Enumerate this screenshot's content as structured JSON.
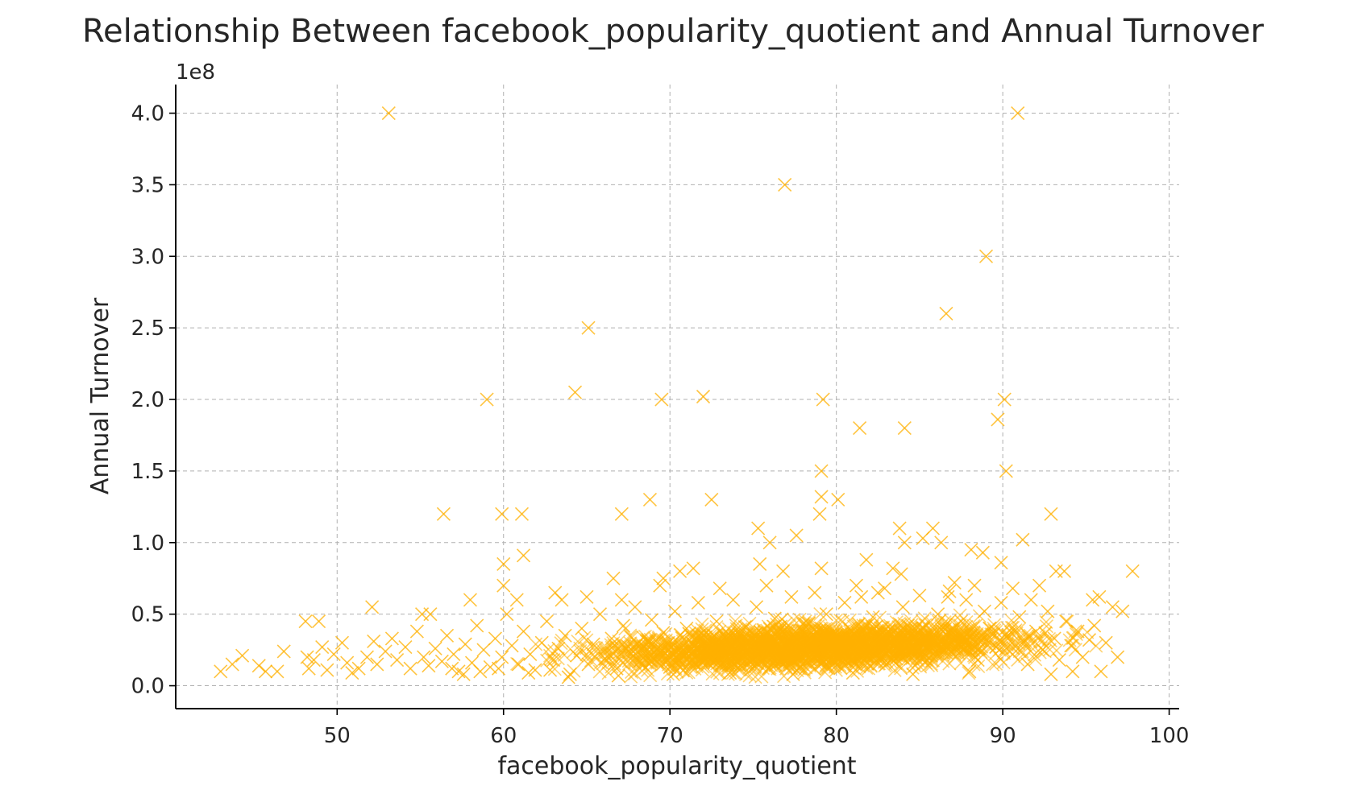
{
  "chart_data": {
    "type": "scatter",
    "title": "Relationship Between facebook_popularity_quotient and Annual Turnover",
    "xlabel": "facebook_popularity_quotient",
    "ylabel": "Annual Turnover",
    "y_scale_label": "1e8",
    "xlim": [
      40.3,
      100.6
    ],
    "ylim": [
      -0.16,
      4.2
    ],
    "x_ticks": [
      50,
      60,
      70,
      80,
      90,
      100
    ],
    "x_tick_labels": [
      "50",
      "60",
      "70",
      "80",
      "90",
      "100"
    ],
    "y_ticks": [
      0.0,
      0.5,
      1.0,
      1.5,
      2.0,
      2.5,
      3.0,
      3.5,
      4.0
    ],
    "y_tick_labels": [
      "0.0",
      "0.5",
      "1.0",
      "1.5",
      "2.0",
      "2.5",
      "3.0",
      "3.5",
      "4.0"
    ],
    "grid": true,
    "marker": "x",
    "color": "#FFB000",
    "y_units_multiplier": "1e8",
    "series": [
      {
        "points": [
          [
            53.1,
            4.0
          ],
          [
            90.9,
            4.0
          ],
          [
            76.9,
            3.5
          ],
          [
            89.0,
            3.0
          ],
          [
            86.6,
            2.6
          ],
          [
            65.1,
            2.5
          ],
          [
            64.3,
            2.05
          ],
          [
            59.0,
            2.0
          ],
          [
            69.5,
            2.0
          ],
          [
            72.0,
            2.02
          ],
          [
            79.2,
            2.0
          ],
          [
            90.1,
            2.0
          ],
          [
            89.7,
            1.86
          ],
          [
            81.4,
            1.8
          ],
          [
            84.1,
            1.8
          ],
          [
            79.1,
            1.5
          ],
          [
            90.2,
            1.5
          ],
          [
            68.8,
            1.3
          ],
          [
            72.5,
            1.3
          ],
          [
            79.1,
            1.32
          ],
          [
            80.1,
            1.3
          ],
          [
            56.4,
            1.2
          ],
          [
            59.9,
            1.2
          ],
          [
            61.1,
            1.2
          ],
          [
            67.1,
            1.2
          ],
          [
            79.0,
            1.2
          ],
          [
            92.9,
            1.2
          ],
          [
            75.3,
            1.1
          ],
          [
            83.8,
            1.1
          ],
          [
            85.8,
            1.1
          ],
          [
            77.6,
            1.05
          ],
          [
            85.2,
            1.03
          ],
          [
            91.2,
            1.02
          ],
          [
            76.0,
            1.0
          ],
          [
            84.1,
            1.0
          ],
          [
            86.3,
            1.0
          ],
          [
            61.2,
            0.91
          ],
          [
            88.1,
            0.95
          ],
          [
            88.8,
            0.93
          ],
          [
            89.9,
            0.86
          ],
          [
            81.8,
            0.88
          ],
          [
            60.0,
            0.85
          ],
          [
            75.4,
            0.85
          ],
          [
            79.1,
            0.82
          ],
          [
            83.4,
            0.82
          ],
          [
            70.6,
            0.8
          ],
          [
            71.4,
            0.82
          ],
          [
            76.8,
            0.8
          ],
          [
            93.2,
            0.8
          ],
          [
            93.7,
            0.8
          ],
          [
            97.8,
            0.8
          ],
          [
            66.6,
            0.75
          ],
          [
            69.6,
            0.75
          ],
          [
            83.9,
            0.78
          ],
          [
            87.1,
            0.72
          ],
          [
            60.0,
            0.7
          ],
          [
            69.4,
            0.7
          ],
          [
            75.8,
            0.7
          ],
          [
            81.2,
            0.7
          ],
          [
            88.3,
            0.7
          ],
          [
            90.6,
            0.68
          ],
          [
            92.2,
            0.7
          ],
          [
            63.1,
            0.65
          ],
          [
            63.5,
            0.6
          ],
          [
            65.0,
            0.62
          ],
          [
            67.1,
            0.6
          ],
          [
            73.0,
            0.68
          ],
          [
            82.5,
            0.65
          ],
          [
            58.0,
            0.6
          ],
          [
            60.8,
            0.6
          ],
          [
            86.7,
            0.62
          ],
          [
            95.4,
            0.6
          ],
          [
            95.8,
            0.62
          ],
          [
            52.1,
            0.55
          ],
          [
            96.6,
            0.55
          ],
          [
            55.1,
            0.5
          ],
          [
            55.6,
            0.5
          ],
          [
            97.2,
            0.52
          ],
          [
            48.1,
            0.45
          ],
          [
            48.9,
            0.45
          ],
          [
            43.0,
            0.1
          ],
          [
            43.7,
            0.15
          ],
          [
            44.3,
            0.21
          ],
          [
            45.3,
            0.14
          ],
          [
            45.7,
            0.1
          ],
          [
            46.4,
            0.1
          ],
          [
            46.8,
            0.24
          ],
          [
            48.2,
            0.2
          ],
          [
            48.3,
            0.12
          ],
          [
            48.6,
            0.18
          ],
          [
            49.1,
            0.27
          ],
          [
            49.4,
            0.11
          ],
          [
            49.8,
            0.22
          ],
          [
            50.3,
            0.3
          ],
          [
            50.6,
            0.16
          ],
          [
            50.9,
            0.09
          ],
          [
            51.3,
            0.12
          ],
          [
            51.8,
            0.2
          ],
          [
            52.2,
            0.31
          ],
          [
            52.4,
            0.15
          ],
          [
            52.9,
            0.24
          ],
          [
            53.3,
            0.33
          ],
          [
            53.6,
            0.18
          ],
          [
            54.1,
            0.27
          ],
          [
            54.4,
            0.12
          ],
          [
            54.8,
            0.38
          ],
          [
            55.2,
            0.2
          ],
          [
            55.5,
            0.14
          ],
          [
            55.9,
            0.26
          ],
          [
            56.3,
            0.17
          ],
          [
            56.6,
            0.35
          ],
          [
            57.0,
            0.22
          ],
          [
            57.3,
            0.1
          ],
          [
            57.7,
            0.29
          ],
          [
            58.1,
            0.16
          ],
          [
            58.4,
            0.42
          ],
          [
            58.8,
            0.25
          ],
          [
            59.2,
            0.13
          ],
          [
            59.5,
            0.33
          ],
          [
            59.9,
            0.2
          ],
          [
            60.2,
            0.5
          ],
          [
            60.5,
            0.28
          ],
          [
            60.9,
            0.15
          ],
          [
            61.2,
            0.38
          ],
          [
            61.6,
            0.22
          ],
          [
            61.9,
            0.11
          ],
          [
            62.3,
            0.3
          ],
          [
            62.6,
            0.45
          ],
          [
            63.0,
            0.18
          ],
          [
            63.3,
            0.26
          ],
          [
            63.7,
            0.35
          ],
          [
            64.0,
            0.08
          ],
          [
            64.4,
            0.21
          ],
          [
            64.7,
            0.4
          ],
          [
            65.1,
            0.15
          ],
          [
            65.4,
            0.29
          ],
          [
            65.8,
            0.5
          ],
          [
            66.1,
            0.19
          ],
          [
            66.5,
            0.33
          ],
          [
            66.8,
            0.12
          ],
          [
            67.2,
            0.42
          ],
          [
            67.5,
            0.24
          ],
          [
            67.9,
            0.55
          ],
          [
            68.2,
            0.17
          ],
          [
            68.6,
            0.31
          ],
          [
            68.9,
            0.46
          ],
          [
            69.3,
            0.2
          ],
          [
            69.6,
            0.37
          ],
          [
            70.0,
            0.13
          ],
          [
            70.3,
            0.52
          ],
          [
            70.7,
            0.27
          ],
          [
            71.0,
            0.4
          ],
          [
            71.4,
            0.16
          ],
          [
            71.7,
            0.58
          ],
          [
            72.1,
            0.3
          ],
          [
            72.4,
            0.22
          ],
          [
            72.8,
            0.45
          ],
          [
            73.1,
            0.14
          ],
          [
            73.5,
            0.36
          ],
          [
            73.8,
            0.6
          ],
          [
            74.2,
            0.25
          ],
          [
            74.5,
            0.41
          ],
          [
            74.9,
            0.18
          ],
          [
            75.2,
            0.55
          ],
          [
            75.6,
            0.3
          ],
          [
            75.9,
            0.12
          ],
          [
            76.3,
            0.47
          ],
          [
            76.6,
            0.23
          ],
          [
            77.0,
            0.38
          ],
          [
            77.3,
            0.62
          ],
          [
            77.7,
            0.19
          ],
          [
            78.0,
            0.43
          ],
          [
            78.4,
            0.28
          ],
          [
            78.7,
            0.65
          ],
          [
            79.1,
            0.15
          ],
          [
            79.4,
            0.5
          ],
          [
            79.8,
            0.33
          ],
          [
            80.1,
            0.22
          ],
          [
            80.5,
            0.58
          ],
          [
            80.8,
            0.4
          ],
          [
            81.2,
            0.17
          ],
          [
            81.5,
            0.62
          ],
          [
            81.9,
            0.3
          ],
          [
            82.2,
            0.48
          ],
          [
            82.6,
            0.24
          ],
          [
            82.9,
            0.68
          ],
          [
            83.3,
            0.36
          ],
          [
            83.6,
            0.19
          ],
          [
            84.0,
            0.55
          ],
          [
            84.3,
            0.42
          ],
          [
            84.7,
            0.28
          ],
          [
            85.0,
            0.63
          ],
          [
            85.4,
            0.33
          ],
          [
            85.7,
            0.21
          ],
          [
            86.1,
            0.5
          ],
          [
            86.4,
            0.38
          ],
          [
            86.8,
            0.66
          ],
          [
            87.1,
            0.26
          ],
          [
            87.5,
            0.45
          ],
          [
            87.8,
            0.6
          ],
          [
            88.2,
            0.32
          ],
          [
            88.5,
            0.18
          ],
          [
            88.9,
            0.52
          ],
          [
            89.2,
            0.4
          ],
          [
            89.6,
            0.27
          ],
          [
            89.9,
            0.58
          ],
          [
            90.3,
            0.35
          ],
          [
            90.6,
            0.22
          ],
          [
            91.0,
            0.48
          ],
          [
            91.3,
            0.3
          ],
          [
            91.7,
            0.6
          ],
          [
            92.0,
            0.38
          ],
          [
            92.4,
            0.25
          ],
          [
            92.7,
            0.52
          ],
          [
            93.1,
            0.33
          ],
          [
            93.4,
            0.18
          ],
          [
            93.8,
            0.45
          ],
          [
            94.1,
            0.28
          ],
          [
            94.5,
            0.38
          ],
          [
            94.8,
            0.2
          ],
          [
            95.2,
            0.32
          ],
          [
            95.5,
            0.42
          ],
          [
            95.9,
            0.1
          ],
          [
            96.2,
            0.3
          ],
          [
            96.9,
            0.2
          ],
          [
            94.2,
            0.1
          ],
          [
            92.9,
            0.08
          ],
          [
            91.5,
            0.15
          ],
          [
            88.0,
            0.1
          ],
          [
            84.6,
            0.08
          ],
          [
            81.0,
            0.09
          ],
          [
            77.4,
            0.08
          ],
          [
            73.6,
            0.09
          ],
          [
            70.2,
            0.08
          ],
          [
            66.9,
            0.07
          ],
          [
            63.9,
            0.06
          ],
          [
            61.5,
            0.09
          ],
          [
            58.6,
            0.1
          ],
          [
            56.9,
            0.12
          ],
          [
            57.6,
            0.08
          ],
          [
            59.7,
            0.12
          ],
          [
            62.8,
            0.11
          ]
        ]
      }
    ]
  }
}
